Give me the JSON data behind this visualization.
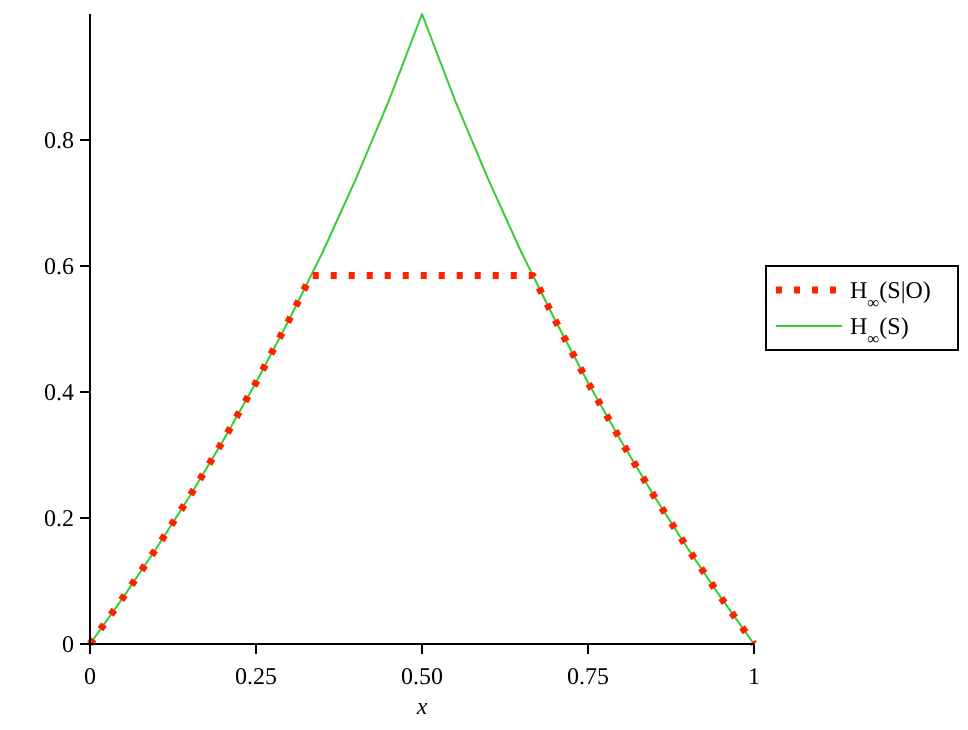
{
  "chart_data": {
    "type": "line",
    "xlabel": "x",
    "xlim": [
      0,
      1
    ],
    "xticks": [
      0,
      {
        "value": 0.25,
        "label": "0.25"
      },
      {
        "value": 0.5,
        "label": "0.50"
      },
      {
        "value": 0.75,
        "label": "0.75"
      },
      1
    ],
    "ylim": [
      0,
      1
    ],
    "yticks": [
      0,
      0.2,
      0.4,
      0.6,
      0.8
    ],
    "legend": "right",
    "grid": false,
    "series": [
      {
        "name": "H$_{∞}$(S|O)",
        "color": "#ff2000",
        "line_style": "dotted",
        "x": [
          0,
          0.05,
          0.1,
          0.15,
          0.2,
          0.25,
          0.3,
          0.333,
          0.667,
          0.7,
          0.75,
          0.8,
          0.85,
          0.9,
          0.95,
          1
        ],
        "values": [
          0,
          0.074,
          0.152,
          0.234,
          0.322,
          0.415,
          0.515,
          0.585,
          0.585,
          0.515,
          0.415,
          0.322,
          0.234,
          0.152,
          0.074,
          0
        ]
      },
      {
        "name": "H$_{∞}$(S)",
        "color": "#33cc33",
        "line_style": "solid",
        "x": [
          0,
          0.05,
          0.1,
          0.15,
          0.2,
          0.25,
          0.3,
          0.35,
          0.4,
          0.45,
          0.5,
          0.55,
          0.6,
          0.65,
          0.7,
          0.75,
          0.8,
          0.85,
          0.9,
          0.95,
          1
        ],
        "values": [
          0,
          0.074,
          0.152,
          0.234,
          0.322,
          0.415,
          0.515,
          0.621,
          0.737,
          0.862,
          1,
          0.862,
          0.737,
          0.621,
          0.515,
          0.415,
          0.322,
          0.234,
          0.152,
          0.074,
          0
        ]
      }
    ]
  }
}
